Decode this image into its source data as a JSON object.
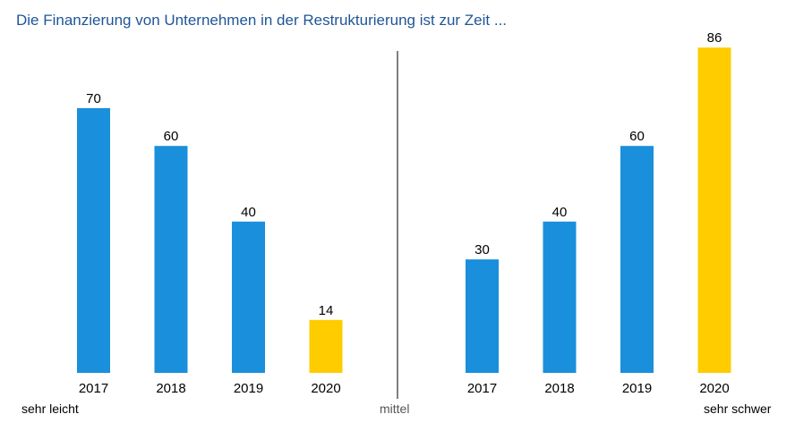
{
  "chart_data": {
    "type": "bar",
    "title": "Die Finanzierung von Unternehmen in der Restrukturierung ist zur Zeit ...",
    "bar_color": "#1a8fdc",
    "highlight_color": "#ffcc00",
    "divider_color": "#7f7f7f",
    "ylim": [
      0,
      100
    ],
    "grid": false,
    "panels": [
      {
        "categories": [
          "2017",
          "2018",
          "2019",
          "2020"
        ],
        "values": [
          70,
          60,
          40,
          14
        ],
        "highlight": "2020"
      },
      {
        "categories": [
          "2017",
          "2018",
          "2019",
          "2020"
        ],
        "values": [
          30,
          40,
          60,
          86
        ],
        "highlight": "2020"
      }
    ],
    "scale_labels": {
      "left": "sehr leicht",
      "middle": "mittel",
      "right": "sehr schwer"
    }
  }
}
